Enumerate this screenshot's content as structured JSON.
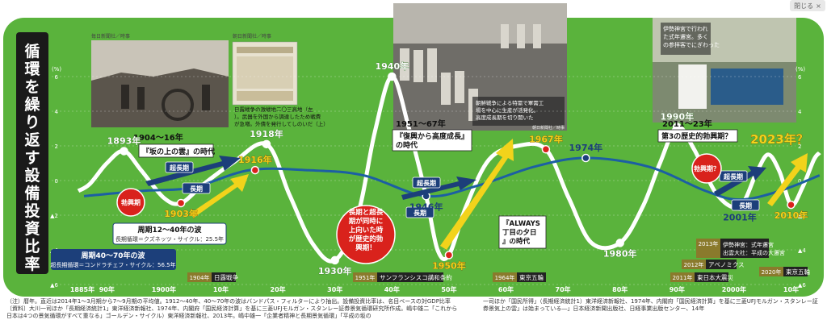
{
  "close_label": "閉じる",
  "close_glyph": "×",
  "title": "循環を繰り返す設備投資比率",
  "colors": {
    "green": "#5ab33c",
    "curve": "#ffffff",
    "trend": "#1c5fa3",
    "yellow": "#f2d31b",
    "red": "#d9221c",
    "navy": "#1c3f7a",
    "olive": "#8a7a2c"
  },
  "chart_data": {
    "type": "line",
    "title": "循環を繰り返す設備投資比率",
    "ylabel": "(%)",
    "ylim": [
      -6,
      6
    ],
    "y_ticks_left": [
      "6",
      "4",
      "2",
      "0",
      "▲2",
      "▲4",
      "▲6"
    ],
    "y_ticks_right": [
      "6",
      "4",
      "2",
      "0",
      "▲2",
      "▲4",
      "▲6"
    ],
    "grid": true,
    "x_ticks": [
      "1885年",
      "90年",
      "1900年",
      "10年",
      "20年",
      "30年",
      "40年",
      "50年",
      "60年",
      "70年",
      "80年",
      "90年",
      "2000年",
      "10年",
      "20年"
    ],
    "series": [
      {
        "name": "周期40〜70年の波",
        "points": [
          [
            1885,
            -0.6
          ],
          [
            1887,
            -0.2
          ],
          [
            1890,
            1.0
          ],
          [
            1893,
            1.7
          ],
          [
            1896,
            0.6
          ],
          [
            1900,
            -1.0
          ],
          [
            1903,
            -1.3
          ],
          [
            1907,
            -0.2
          ],
          [
            1912,
            1.0
          ],
          [
            1918,
            2.1
          ],
          [
            1922,
            -0.8
          ],
          [
            1926,
            -3.6
          ],
          [
            1930,
            -4.6
          ],
          [
            1934,
            -2.0
          ],
          [
            1937,
            2.8
          ],
          [
            1940,
            6.0
          ],
          [
            1943,
            3.0
          ],
          [
            1946,
            -0.9
          ],
          [
            1948,
            -4.0
          ],
          [
            1950,
            -4.3
          ],
          [
            1953,
            -1.5
          ],
          [
            1957,
            1.2
          ],
          [
            1962,
            2.0
          ],
          [
            1967,
            1.8
          ],
          [
            1971,
            -1.0
          ],
          [
            1975,
            -3.6
          ],
          [
            1980,
            -3.6
          ],
          [
            1984,
            -1.5
          ],
          [
            1987,
            1.0
          ],
          [
            1990,
            3.1
          ],
          [
            1993,
            1.8
          ],
          [
            1997,
            -0.8
          ],
          [
            2001,
            -1.5
          ],
          [
            2004,
            0.5
          ],
          [
            2006,
            1.5
          ],
          [
            2008,
            0.5
          ],
          [
            2010,
            -1.4
          ],
          [
            2012,
            -0.4
          ],
          [
            2014,
            1.2
          ],
          [
            2015,
            1.6
          ]
        ]
      },
      {
        "name": "周期12〜40年の波",
        "points": [
          [
            1886,
            -0.9
          ],
          [
            1896,
            -0.6
          ],
          [
            1905,
            -0.4
          ],
          [
            1915,
            0.6
          ],
          [
            1925,
            0.6
          ],
          [
            1935,
            0.3
          ],
          [
            1946,
            -0.9
          ],
          [
            1955,
            -0.3
          ],
          [
            1965,
            0.8
          ],
          [
            1974,
            1.3
          ],
          [
            1985,
            0.8
          ],
          [
            1995,
            -0.6
          ],
          [
            2001,
            -1.1
          ],
          [
            2008,
            -0.6
          ],
          [
            2015,
            0.3
          ]
        ]
      }
    ],
    "labels": [
      {
        "text": "1893年",
        "year": 1893,
        "value": 1.7,
        "color": "white"
      },
      {
        "text": "1903年",
        "year": 1903,
        "value": -1.3,
        "color": "yellow"
      },
      {
        "text": "1916年",
        "year": 1916,
        "value": 0.6,
        "color": "yellow"
      },
      {
        "text": "1918年",
        "year": 1918,
        "value": 2.1,
        "color": "white"
      },
      {
        "text": "1930年",
        "year": 1930,
        "value": -4.6,
        "color": "white"
      },
      {
        "text": "1940年",
        "year": 1940,
        "value": 6.0,
        "color": "white"
      },
      {
        "text": "1946年",
        "year": 1946,
        "value": -0.9,
        "color": "navy"
      },
      {
        "text": "1950年",
        "year": 1950,
        "value": -4.3,
        "color": "yellow"
      },
      {
        "text": "1967年",
        "year": 1967,
        "value": 1.8,
        "color": "yellow"
      },
      {
        "text": "1974年",
        "year": 1974,
        "value": 1.3,
        "color": "navy"
      },
      {
        "text": "1980年",
        "year": 1980,
        "value": -3.6,
        "color": "white"
      },
      {
        "text": "1990年",
        "year": 1990,
        "value": 3.1,
        "color": "white"
      },
      {
        "text": "2001年",
        "year": 2001,
        "value": -1.5,
        "color": "navy"
      },
      {
        "text": "2010年",
        "year": 2010,
        "value": -1.4,
        "color": "yellow"
      },
      {
        "text": "2023年？",
        "year": 2023,
        "value": 2.5,
        "color": "yellow"
      }
    ],
    "wave_labels": {
      "short_title": "周期12〜40年の波",
      "short_sub": "長期循環＝クズネッツ・サイクル：25.5年",
      "long_title": "周期40〜70年の波",
      "long_sub": "超長期循環＝コンドラチェフ・サイクル：56.5年"
    },
    "era_labels": [
      {
        "years": "1904〜16年",
        "name": "『坂の上の雲』の時代"
      },
      {
        "years": "1951〜67年",
        "name": "『復興から高度成長』の時代"
      },
      {
        "name": "『ALWAYS 三丁目の夕日』の時代"
      },
      {
        "years": "2011〜23年",
        "name": "第3の歴史的勃興期？"
      }
    ],
    "arrow_tags": [
      "超長期",
      "長期",
      "超長期",
      "長期",
      "超長期",
      "長期"
    ],
    "boom_badges": [
      "勃興期",
      "長期と超長期が同時に上向いた時が歴史的勃興期！",
      "勃興期？"
    ],
    "events": [
      {
        "year": "1904年",
        "name": "日露戦争"
      },
      {
        "year": "1951年",
        "name": "サンフランシスコ講和条約"
      },
      {
        "year": "1964年",
        "name": "東京五輪"
      },
      {
        "year": "2011年",
        "name": "東日本大震災"
      },
      {
        "year": "2012年",
        "name": "アベノミクス"
      },
      {
        "year": "2013年",
        "name": "伊勢神宮：式年遷宮 出雲大社：平成の大遷宮"
      },
      {
        "year": "2020年",
        "name": "東京五輪"
      }
    ]
  },
  "photos": [
    {
      "credit": "毎日新聞社／時事",
      "caption": ""
    },
    {
      "credit": "朝日新聞社／時事",
      "caption": "日露戦争の激戦地二〇三高地（左）。武器を外国から調達したため戦費が急増。外債を発行してしのいだ（上）"
    },
    {
      "credit": "朝日新聞社／時事",
      "caption": "朝鮮戦争による特需で軍需工場を中心に生産が活発化。高度成長期を切り開いた"
    },
    {
      "credit": "",
      "caption": "伊勢神宮で行われた式年遷宮。多くの参拝客でにぎわった"
    }
  ],
  "notes": {
    "left": "（注）暦年。直近は2014年1〜3月期から7〜9月期の平均値。1912〜40年、40〜70年の波はバンドパス・フィルターにより抽出。設備投資比率は、名目ベースの対GDP比率　〔資料〕大川一司ほか「長期経済統計1」東洋経済新報社、1974年、内閣府「国民経済計算」を基に三菱UFJモルガン・スタンレー証券景気循環研究所作成。嶋中雄二「これから日本は4つの景気循環がすべて重なる」ゴールデン・サイクル）東洋経済新報社、2013年。嶋中雄一「企業者精神と長期景気循環」「平成の坂の",
    "right": "一司ほか「国民所得」（長期経済統計1）東洋経済新報社、1974年、内閣府「国民経済計算」を基に三菱UFJモルガン・スタンレー証券景気上の雲」は始まっている―」日本経済新聞出版社、日経事業出版センター、14年"
  }
}
